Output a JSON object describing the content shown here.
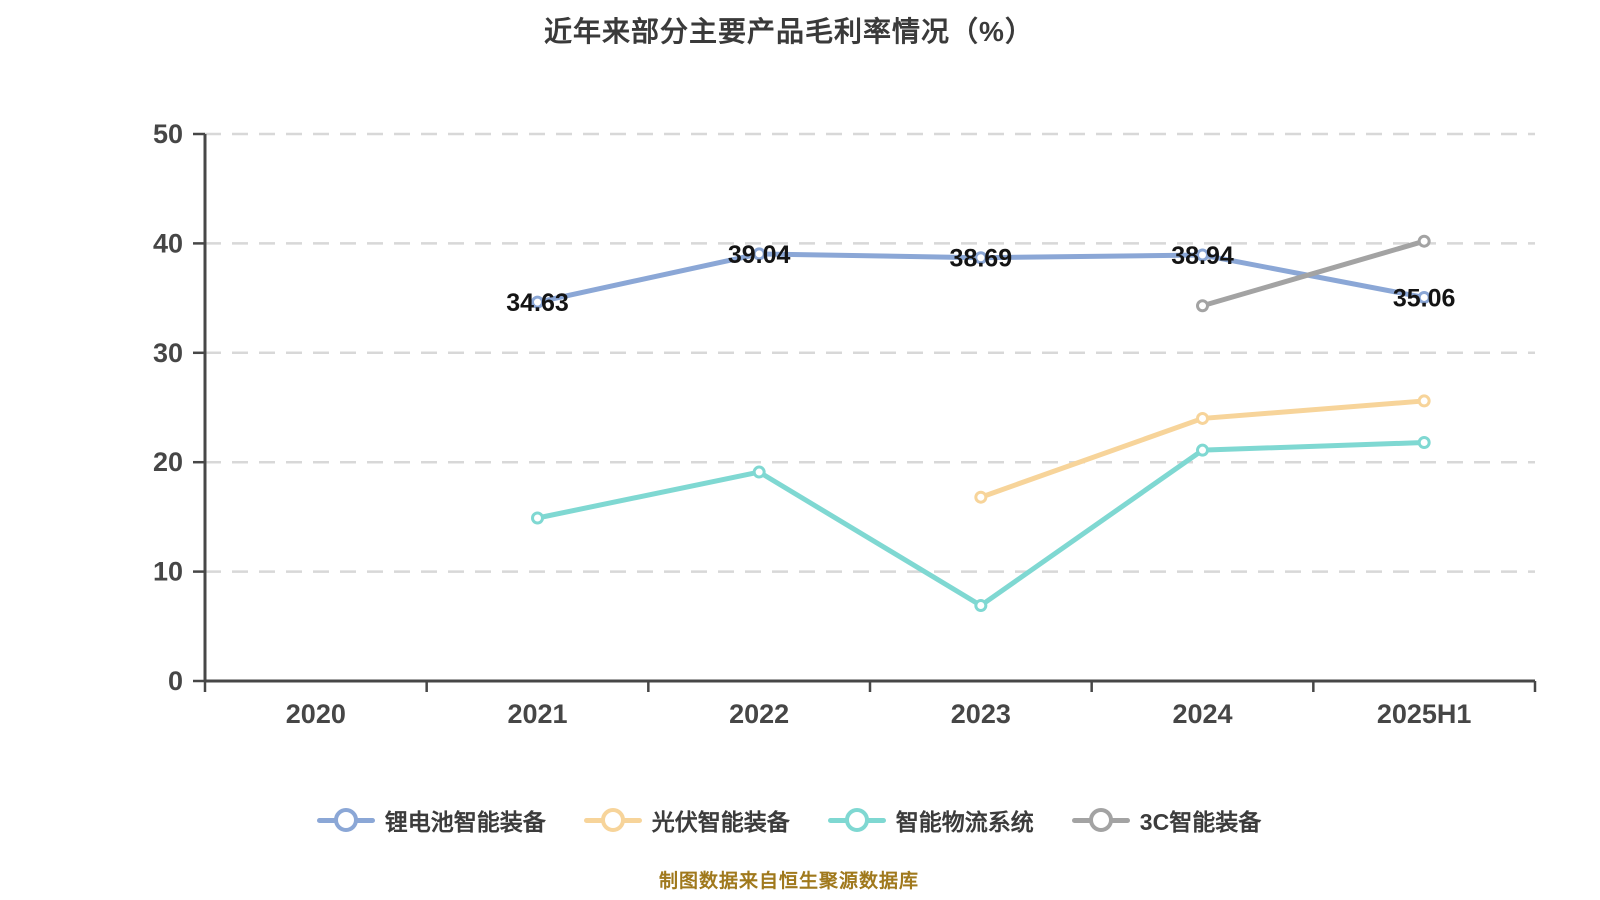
{
  "title": "近年来部分主要产品毛利率情况（%）",
  "footer": "制图数据来自恒生聚源数据库",
  "palette": {
    "grid_color": "#d8d8d8",
    "axis_color": "#474747",
    "title_color": "#3a3a3a",
    "footer_color": "#a0791d",
    "data_label_color": "#141414"
  },
  "chart_data": {
    "type": "line",
    "title": "近年来部分主要产品毛利率情况（%）",
    "xlabel": "",
    "ylabel": "",
    "categories": [
      "2020",
      "2021",
      "2022",
      "2023",
      "2024",
      "2025H1"
    ],
    "series": [
      {
        "id": "li-battery-equipment",
        "name": "锂电池智能装备",
        "color": "#8ba7d6",
        "values": [
          null,
          34.63,
          39.04,
          38.69,
          38.94,
          35.06
        ],
        "show_labels": true,
        "data_labels": [
          "34.63",
          "39.04",
          "38.69",
          "38.94",
          "35.06"
        ]
      },
      {
        "id": "pv-equipment",
        "name": "光伏智能装备",
        "color": "#f7d49a",
        "values": [
          null,
          null,
          null,
          16.8,
          24.0,
          25.6
        ],
        "show_labels": false
      },
      {
        "id": "logistics-system",
        "name": "智能物流系统",
        "color": "#7fd8d2",
        "values": [
          null,
          14.9,
          19.1,
          6.9,
          21.1,
          21.8
        ],
        "show_labels": false
      },
      {
        "id": "3c-equipment",
        "name": "3C智能装备",
        "color": "#a3a3a3",
        "values": [
          null,
          null,
          null,
          null,
          34.3,
          40.2
        ],
        "show_labels": false
      }
    ],
    "ylim": [
      0,
      50
    ],
    "yticks": [
      0,
      10,
      20,
      30,
      40,
      50
    ],
    "grid": "horizontal-dashed",
    "legend_position": "bottom",
    "marker": "empty-circle"
  }
}
